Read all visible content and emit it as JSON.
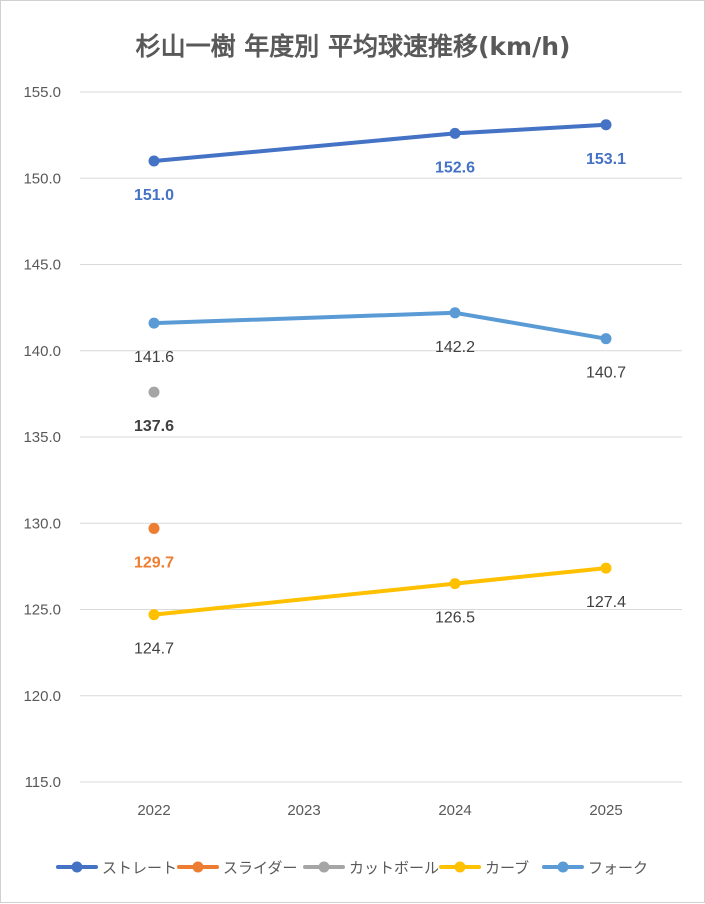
{
  "chart_data": {
    "type": "line",
    "title": "杉山一樹 年度別 平均球速推移(km/h)",
    "categories": [
      "2022",
      "2023",
      "2024",
      "2025"
    ],
    "ylim": [
      115,
      155
    ],
    "yticks": [
      "155.0",
      "150.0",
      "145.0",
      "140.0",
      "135.0",
      "130.0",
      "125.0",
      "120.0",
      "115.0"
    ],
    "grid": true,
    "legend_position": "bottom",
    "series": [
      {
        "name": "ストレート",
        "color": "#4472C4",
        "values": [
          151.0,
          null,
          152.6,
          153.1
        ],
        "labels": [
          "151.0",
          null,
          "152.6",
          "153.1"
        ],
        "label_color": "#4472C4",
        "label_bold": true
      },
      {
        "name": "スライダー",
        "color": "#ED7D31",
        "values": [
          129.7,
          null,
          null,
          null
        ],
        "labels": [
          "129.7",
          null,
          null,
          null
        ],
        "label_color": "#ED7D31",
        "label_bold": true
      },
      {
        "name": "カットボール",
        "color": "#A5A5A5",
        "values": [
          137.6,
          null,
          null,
          null
        ],
        "labels": [
          "137.6",
          null,
          null,
          null
        ],
        "label_color": "#404040",
        "label_bold": true
      },
      {
        "name": "カーブ",
        "color": "#FFC000",
        "values": [
          124.7,
          null,
          126.5,
          127.4
        ],
        "labels": [
          "124.7",
          null,
          "126.5",
          "127.4"
        ],
        "label_color": "#404040",
        "label_bold": false
      },
      {
        "name": "フォーク",
        "color": "#5B9BD5",
        "values": [
          141.6,
          null,
          142.2,
          140.7
        ],
        "labels": [
          "141.6",
          null,
          "142.2",
          "140.7"
        ],
        "label_color": "#404040",
        "label_bold": false
      }
    ]
  }
}
